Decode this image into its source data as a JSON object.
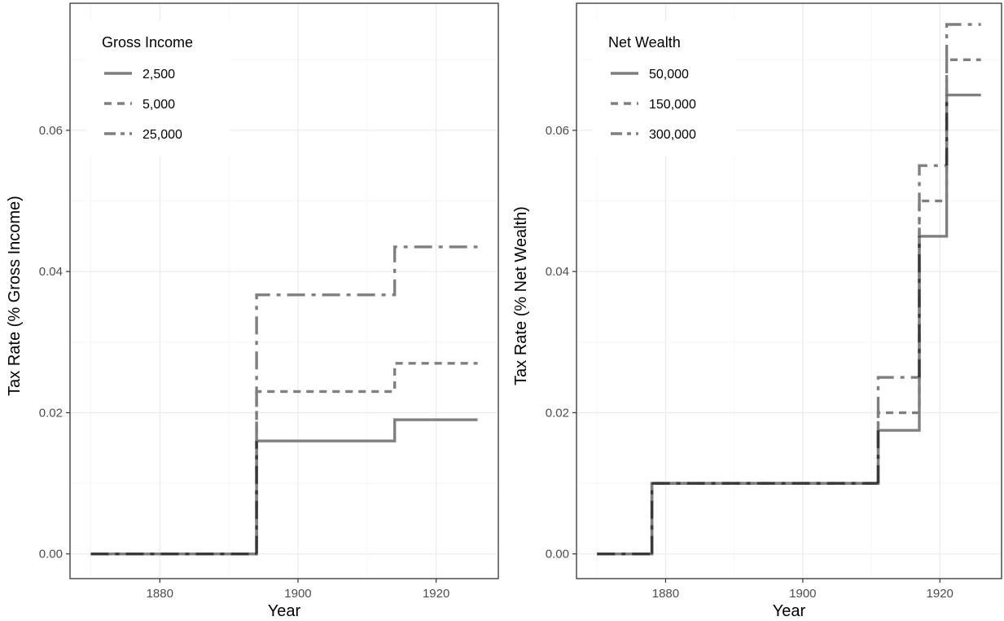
{
  "chart_data": [
    {
      "type": "line",
      "step": true,
      "xlabel": "Year",
      "ylabel": "Tax Rate (% Gross Income)",
      "xlim": [
        1867,
        1929
      ],
      "ylim": [
        -0.0035,
        0.078
      ],
      "xticks": [
        1880,
        1900,
        1920
      ],
      "xtick_labels": [
        "1880",
        "1900",
        "1920"
      ],
      "yticks": [
        0,
        0.02,
        0.04,
        0.06
      ],
      "ytick_labels": [
        "0.00",
        "0.02",
        "0.04",
        "0.06"
      ],
      "grid": true,
      "legend": {
        "title": "Gross Income",
        "position": "top-left"
      },
      "series": [
        {
          "name": "2,500",
          "linetype": "solid",
          "x": [
            1870,
            1894,
            1914,
            1926
          ],
          "y": [
            0,
            0.016,
            0.019,
            0.019
          ]
        },
        {
          "name": "5,000",
          "linetype": "dashed",
          "x": [
            1870,
            1894,
            1914,
            1926
          ],
          "y": [
            0,
            0.023,
            0.027,
            0.027
          ]
        },
        {
          "name": "25,000",
          "linetype": "longdash",
          "x": [
            1870,
            1894,
            1914,
            1926
          ],
          "y": [
            0,
            0.0367,
            0.0435,
            0.0435
          ]
        }
      ]
    },
    {
      "type": "line",
      "step": true,
      "xlabel": "Year",
      "ylabel": "Tax Rate (% Net Wealth)",
      "xlim": [
        1867,
        1929
      ],
      "ylim": [
        -0.0035,
        0.078
      ],
      "xticks": [
        1880,
        1900,
        1920
      ],
      "xtick_labels": [
        "1880",
        "1900",
        "1920"
      ],
      "yticks": [
        0,
        0.02,
        0.04,
        0.06
      ],
      "ytick_labels": [
        "0.00",
        "0.02",
        "0.04",
        "0.06"
      ],
      "grid": true,
      "legend": {
        "title": "Net Wealth",
        "position": "top-left"
      },
      "series": [
        {
          "name": "50,000",
          "linetype": "solid",
          "x": [
            1870,
            1878,
            1911,
            1917,
            1921,
            1926
          ],
          "y": [
            0,
            0.01,
            0.0175,
            0.045,
            0.065,
            0.065
          ]
        },
        {
          "name": "150,000",
          "linetype": "dashed",
          "x": [
            1870,
            1878,
            1911,
            1917,
            1921,
            1926
          ],
          "y": [
            0,
            0.01,
            0.02,
            0.05,
            0.07,
            0.07
          ]
        },
        {
          "name": "300,000",
          "linetype": "longdash",
          "x": [
            1870,
            1878,
            1911,
            1917,
            1921,
            1926
          ],
          "y": [
            0,
            0.01,
            0.025,
            0.055,
            0.075,
            0.075
          ]
        }
      ]
    }
  ],
  "colors": {
    "line": "#7f7f7f",
    "overlap": "#222222",
    "grid_major": "#ebebeb",
    "grid_minor": "#f5f5f5",
    "panel_border": "#333333"
  }
}
